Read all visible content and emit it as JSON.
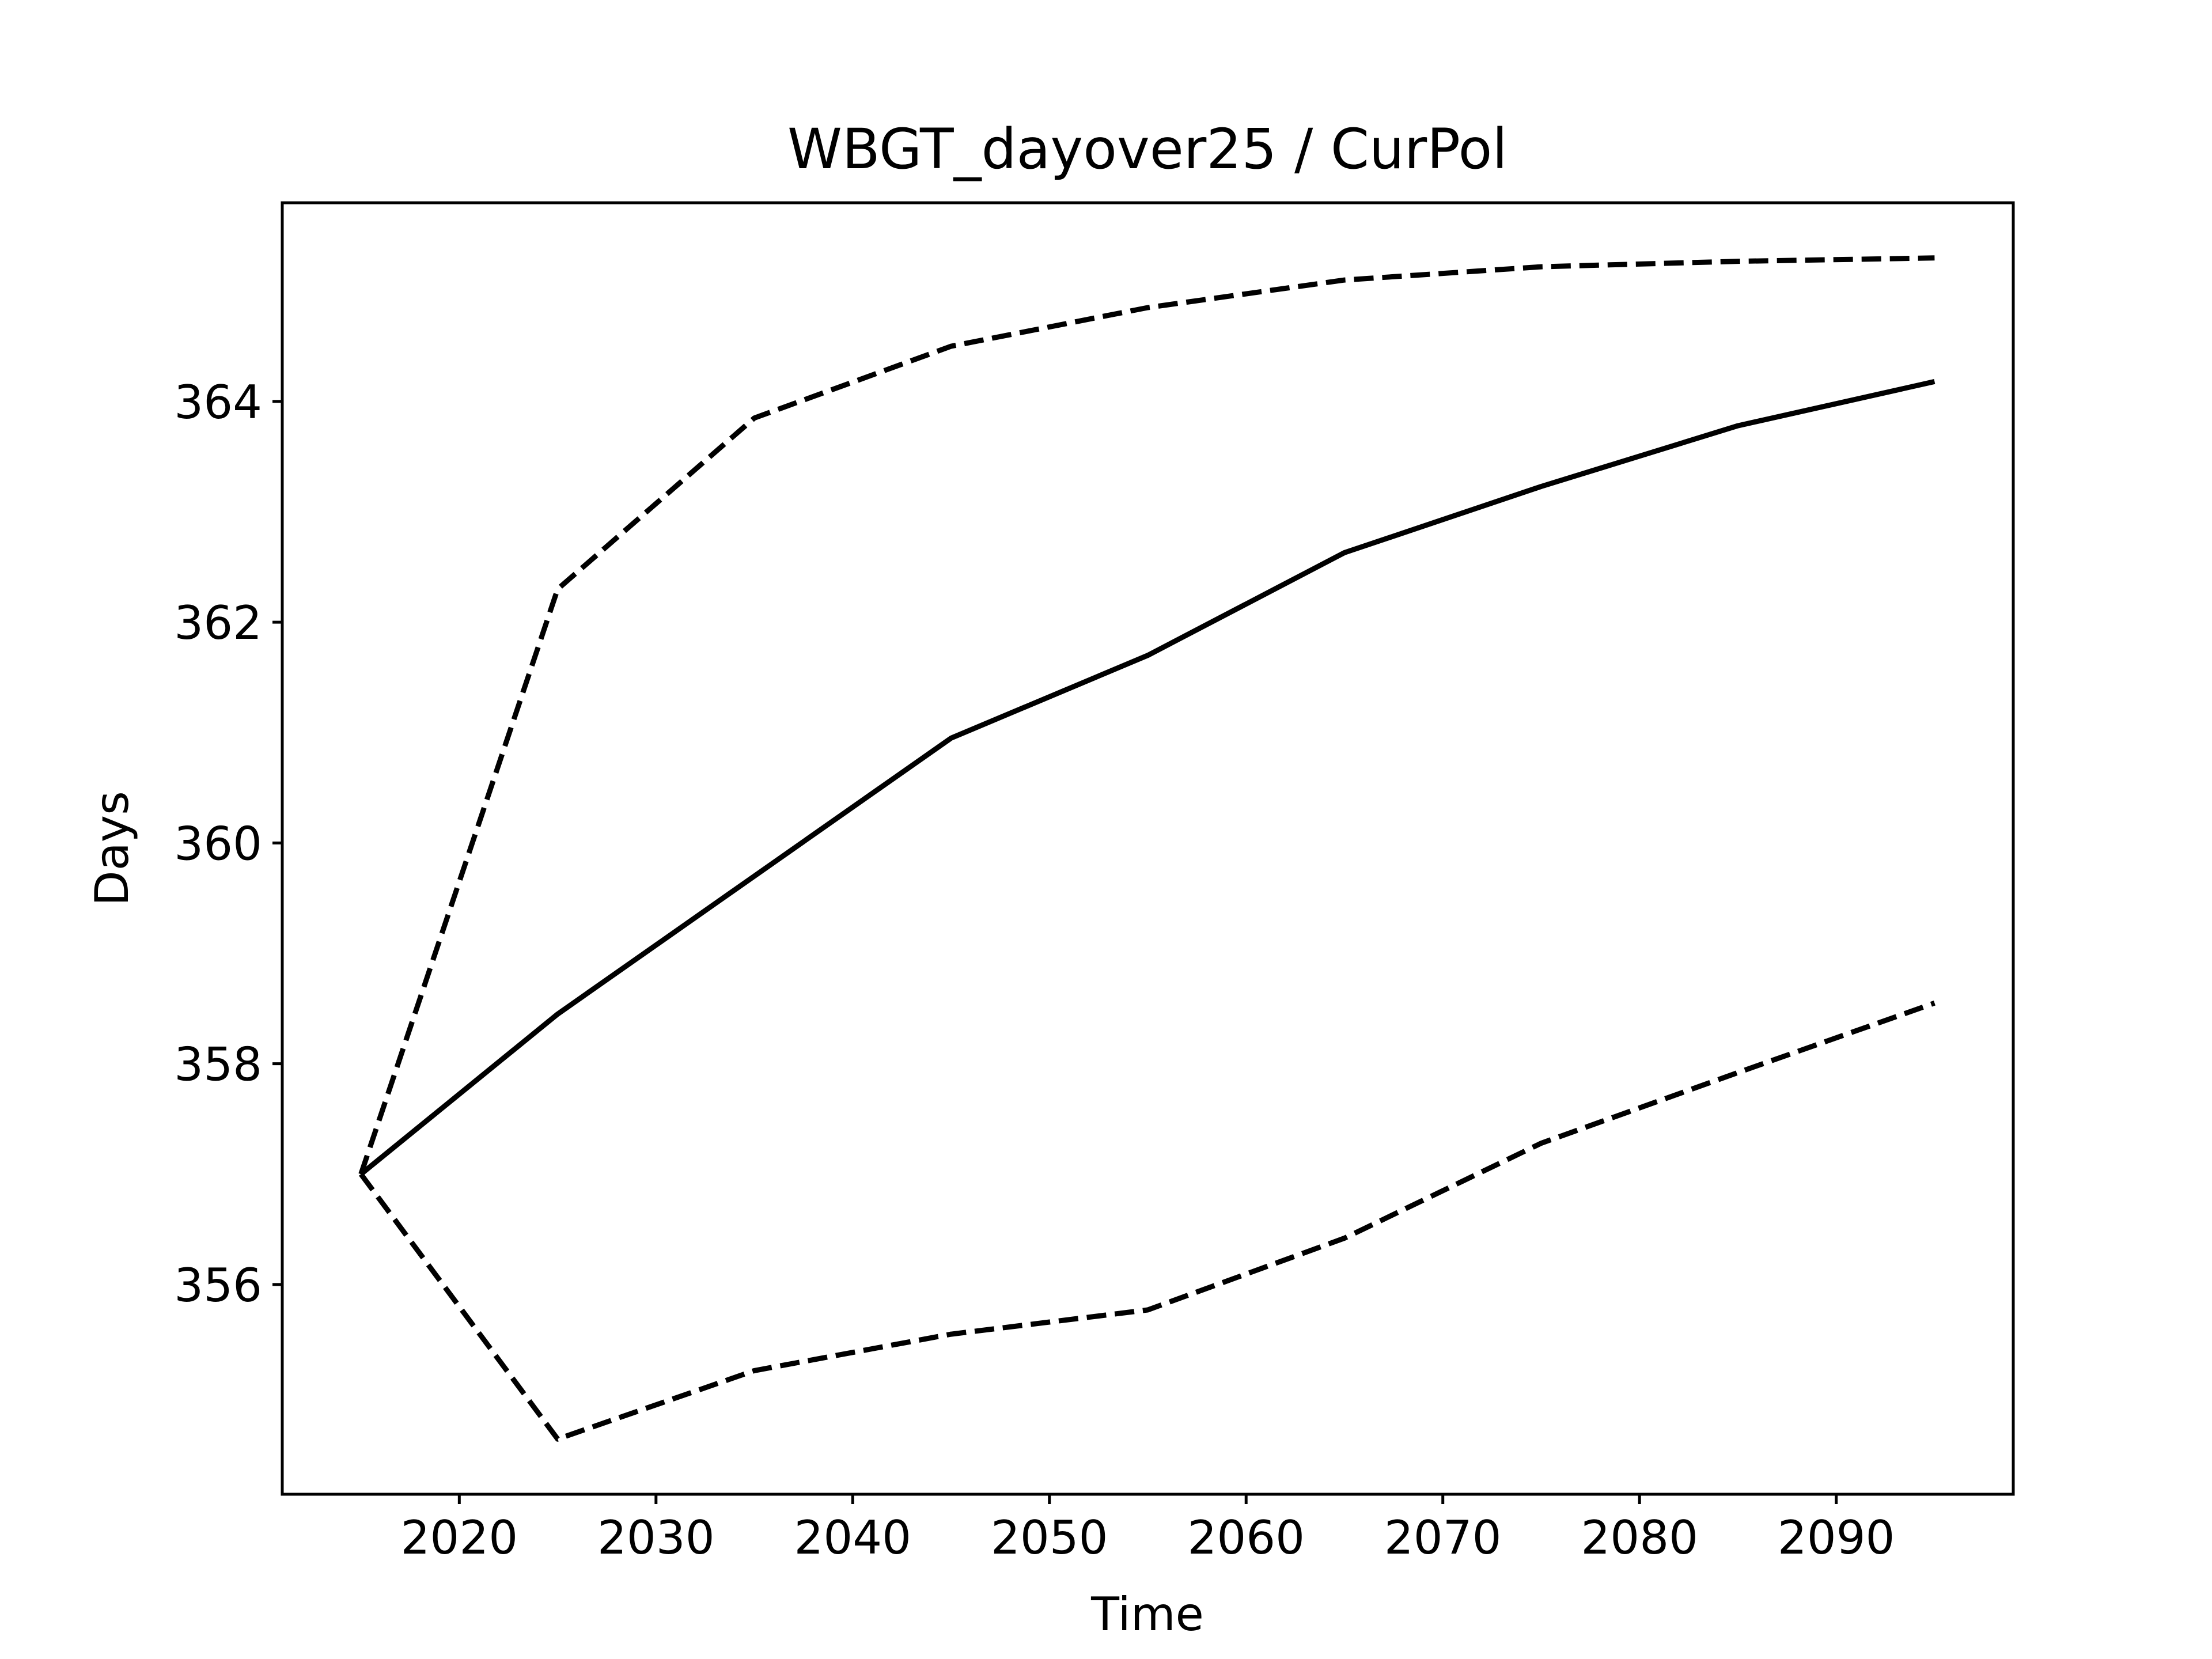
{
  "chart_data": {
    "type": "line",
    "title": "WBGT_dayover25 / CurPol",
    "xlabel": "Time",
    "ylabel": "Days",
    "xlim": [
      2011,
      2099
    ],
    "ylim": [
      354.1,
      365.8
    ],
    "xticks": [
      2020,
      2030,
      2040,
      2050,
      2060,
      2070,
      2080,
      2090
    ],
    "yticks": [
      356,
      358,
      360,
      362,
      364
    ],
    "x": [
      2015,
      2025,
      2035,
      2045,
      2055,
      2065,
      2075,
      2085,
      2095
    ],
    "grid": false,
    "series": [
      {
        "style": "dashed",
        "color": "#000000",
        "values": [
          357.0,
          362.3,
          363.85,
          364.5,
          364.85,
          365.1,
          365.22,
          365.27,
          365.3
        ]
      },
      {
        "style": "solid",
        "color": "#000000",
        "values": [
          357.0,
          358.45,
          359.7,
          360.95,
          361.7,
          362.63,
          363.23,
          363.78,
          364.18
        ]
      },
      {
        "style": "dashed",
        "color": "#000000",
        "values": [
          357.0,
          354.6,
          355.22,
          355.55,
          355.77,
          356.42,
          357.28,
          357.92,
          358.55
        ]
      }
    ]
  }
}
